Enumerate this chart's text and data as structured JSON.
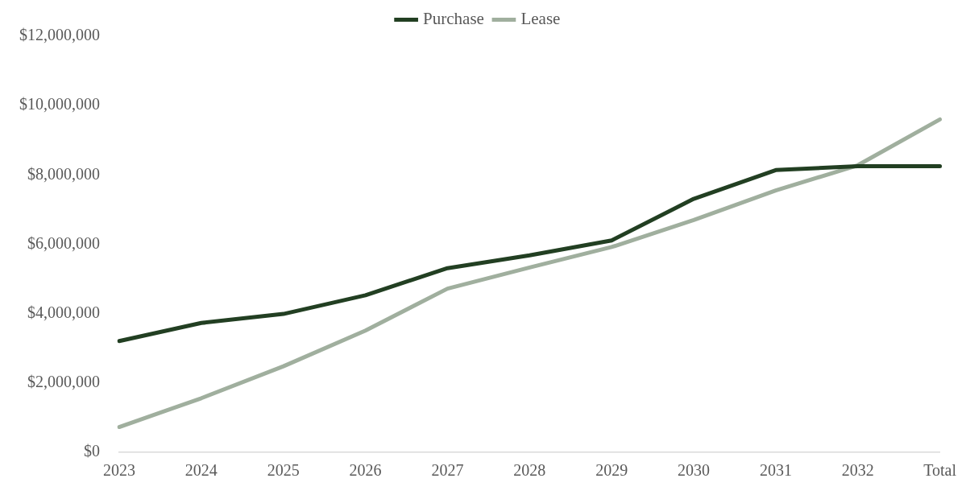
{
  "chart_data": {
    "type": "line",
    "categories": [
      "2023",
      "2024",
      "2025",
      "2026",
      "2027",
      "2028",
      "2029",
      "2030",
      "2031",
      "2032",
      "Total"
    ],
    "series": [
      {
        "name": "Purchase",
        "color": "#223f22",
        "values": [
          3210000,
          3730000,
          3990000,
          4530000,
          5310000,
          5680000,
          6110000,
          7310000,
          8140000,
          8250000,
          8250000
        ]
      },
      {
        "name": "Lease",
        "color": "#a0af9e",
        "values": [
          730000,
          1560000,
          2480000,
          3510000,
          4720000,
          5330000,
          5920000,
          6700000,
          7550000,
          8280000,
          9600000
        ]
      }
    ],
    "ylim": [
      0,
      12000000
    ],
    "yticks": [
      {
        "value": 0,
        "label": "$0"
      },
      {
        "value": 2000000,
        "label": "$2,000,000"
      },
      {
        "value": 4000000,
        "label": "$4,000,000"
      },
      {
        "value": 6000000,
        "label": "$6,000,000"
      },
      {
        "value": 8000000,
        "label": "$8,000,000"
      },
      {
        "value": 10000000,
        "label": "$10,000,000"
      },
      {
        "value": 12000000,
        "label": "$12,000,000"
      }
    ],
    "grid": false,
    "legend": "top",
    "marker": "none"
  }
}
